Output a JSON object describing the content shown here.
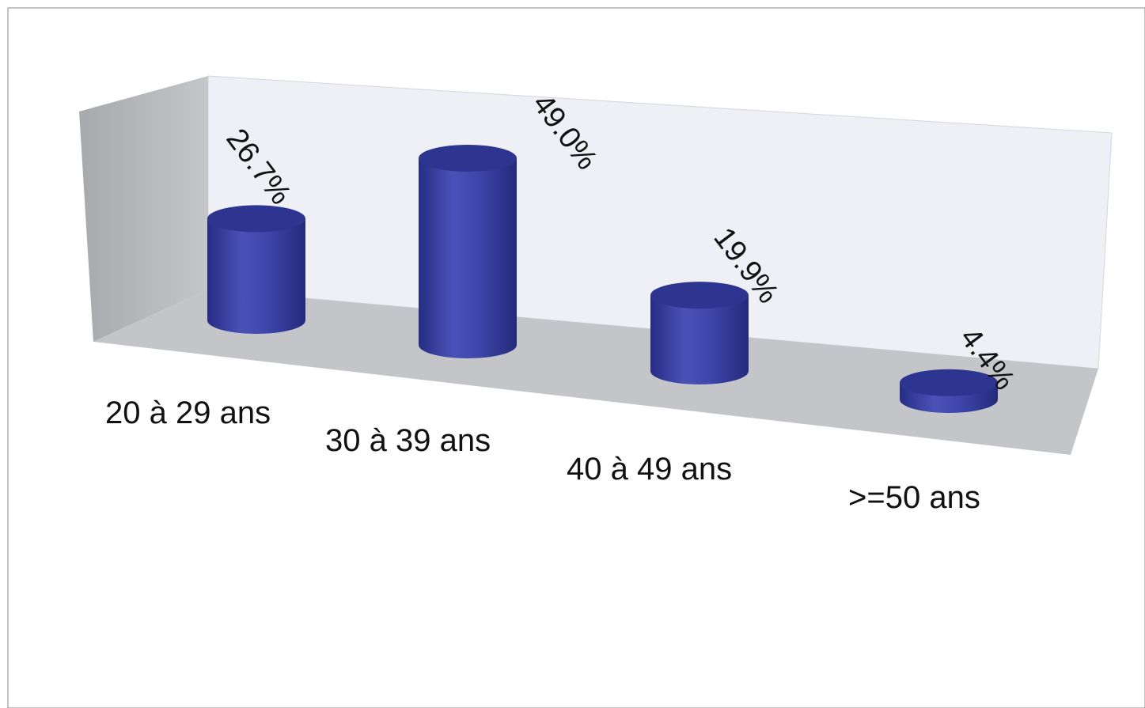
{
  "chart_data": {
    "type": "bar",
    "style": "3d-cylinder",
    "categories": [
      "20 à 29 ans",
      "30 à 39 ans",
      "40 à 49 ans",
      ">=50 ans"
    ],
    "values": [
      26.7,
      49.0,
      19.9,
      4.4
    ],
    "value_labels": [
      "26.7%",
      "49.0%",
      "19.9%",
      "4.4%"
    ],
    "unit": "%",
    "ylim": [
      0,
      50
    ],
    "grid": false,
    "legend": "none",
    "colors": {
      "bar": "#3c44a6",
      "bar_top": "#2e3590",
      "back_wall": "#eef0f5",
      "side_wall": "#b9babd",
      "floor": "#c4c5c8"
    }
  }
}
